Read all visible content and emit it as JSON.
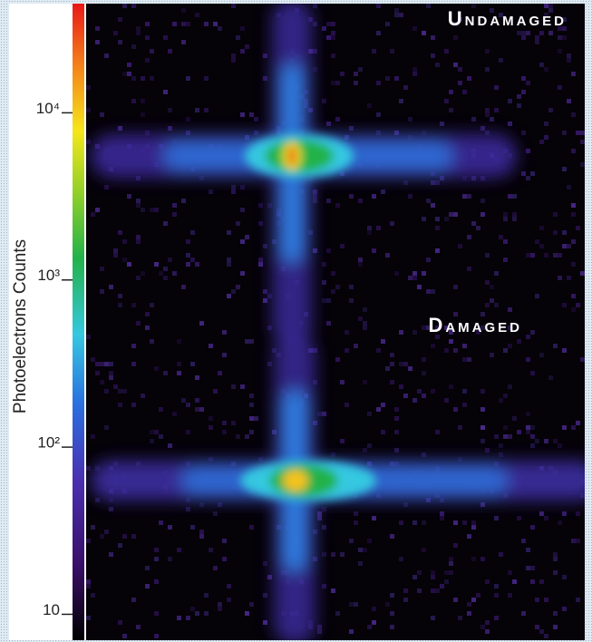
{
  "colorbar": {
    "title": "Photoelectrons Counts",
    "scale": "log",
    "ylim": [
      7,
      45000
    ],
    "ticks": [
      {
        "value": 10,
        "label": "10"
      },
      {
        "value": 100,
        "label": "10²"
      },
      {
        "value": 1000,
        "label": "10³"
      },
      {
        "value": 10000,
        "label": "10⁴"
      }
    ]
  },
  "annotations": {
    "top": "Undamaged",
    "bottom": "Damaged"
  }
}
